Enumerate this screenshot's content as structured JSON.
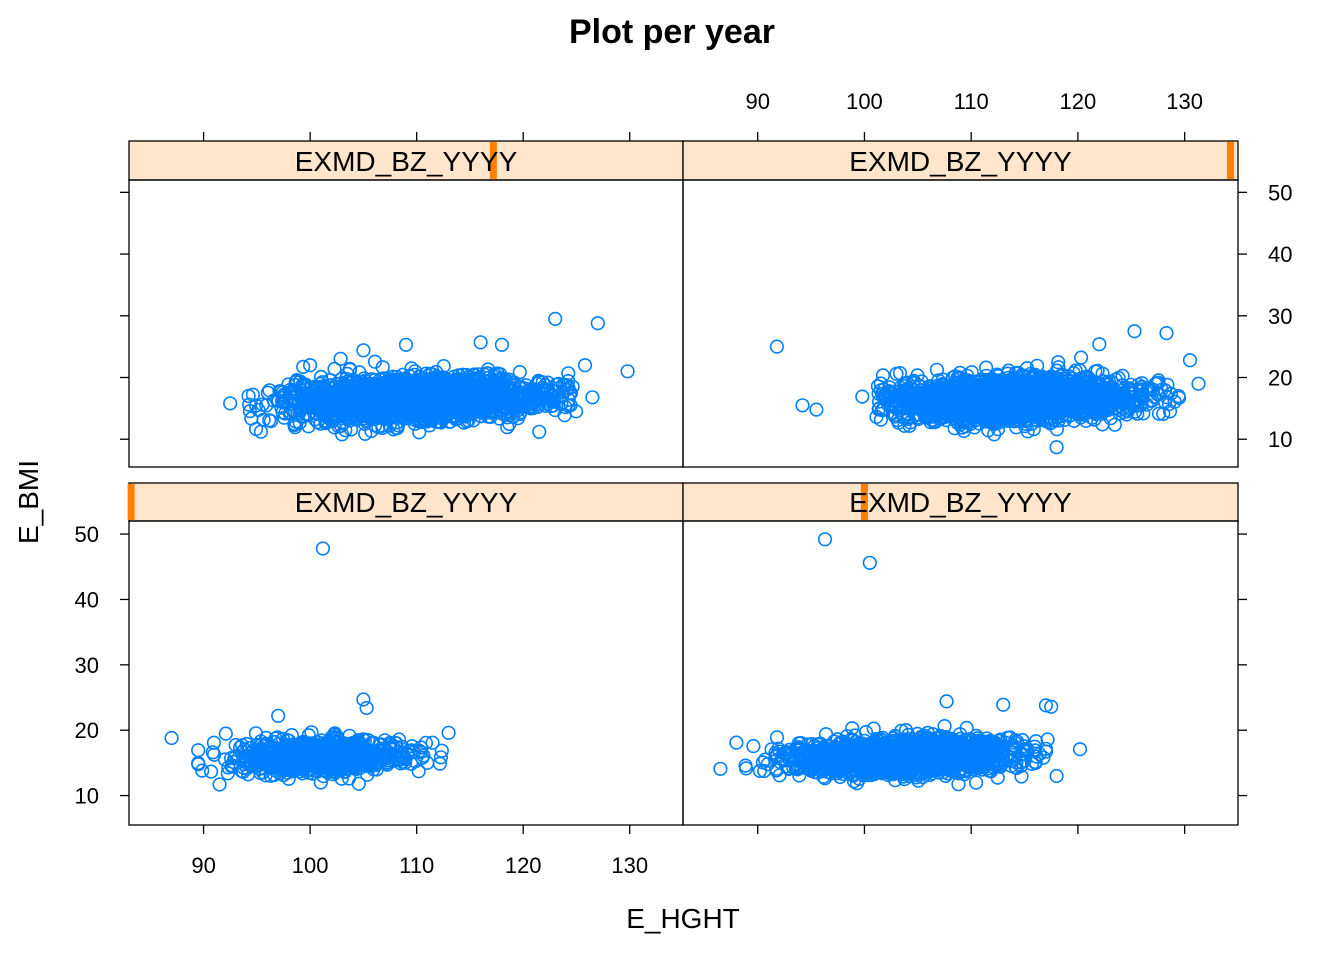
{
  "chart_data": {
    "type": "scatter",
    "layout": "2x2 lattice (trellis) panels",
    "title": "Plot per year",
    "xlabel": "E_HGHT",
    "ylabel": "E_BMI",
    "xlim": [
      83,
      135
    ],
    "ylim": [
      5.5,
      52
    ],
    "x_ticks": [
      90,
      100,
      110,
      120,
      130
    ],
    "y_ticks": [
      10,
      20,
      30,
      40,
      50
    ],
    "point_color": "#0080ff",
    "strip_color": "#ffe5cc",
    "strip_marker_color": "#ff7f00",
    "grid": false,
    "legend": "none",
    "panels": [
      {
        "id": "bottom-left",
        "strip_label": "EXMD_BZ_YYYY",
        "strip_marker_x": 83.2,
        "cluster": {
          "x_range": [
            89,
            115
          ],
          "x_mean": 101,
          "x_sd": 3.8,
          "y_mean": 16,
          "y_sd": 1.2,
          "n": 900
        },
        "outliers": [
          {
            "x": 101.2,
            "y": 47.8
          },
          {
            "x": 87,
            "y": 18.8
          },
          {
            "x": 89.5,
            "y": 14.8
          },
          {
            "x": 113,
            "y": 19.6
          },
          {
            "x": 111,
            "y": 15
          },
          {
            "x": 105,
            "y": 24.7
          },
          {
            "x": 105.3,
            "y": 23.4
          },
          {
            "x": 97,
            "y": 22.2
          },
          {
            "x": 91.5,
            "y": 11.7
          },
          {
            "x": 101,
            "y": 12
          }
        ]
      },
      {
        "id": "bottom-right",
        "strip_label": "EXMD_BZ_YYYY",
        "strip_marker_x": 100,
        "cluster": {
          "x_range": [
            88,
            120
          ],
          "x_mean": 104,
          "x_sd": 5.0,
          "y_mean": 16,
          "y_sd": 1.3,
          "n": 1800
        },
        "outliers": [
          {
            "x": 96.3,
            "y": 49.2
          },
          {
            "x": 100.5,
            "y": 45.6
          },
          {
            "x": 86.5,
            "y": 14.1
          },
          {
            "x": 120.2,
            "y": 17.1
          },
          {
            "x": 118,
            "y": 13
          },
          {
            "x": 117,
            "y": 23.8
          },
          {
            "x": 117.5,
            "y": 23.6
          },
          {
            "x": 107.7,
            "y": 24.4
          },
          {
            "x": 113,
            "y": 23.9
          },
          {
            "x": 88,
            "y": 18.1
          },
          {
            "x": 99.3,
            "y": 11.9
          }
        ]
      },
      {
        "id": "top-left",
        "strip_label": "EXMD_BZ_YYYY",
        "strip_marker_x": 117.2,
        "cluster": {
          "x_range": [
            94,
            125
          ],
          "x_mean": 110,
          "x_sd": 6.0,
          "y_mean": 16.5,
          "y_sd": 1.7,
          "n": 2200
        },
        "outliers": [
          {
            "x": 92.5,
            "y": 15.8
          },
          {
            "x": 123,
            "y": 29.5
          },
          {
            "x": 127,
            "y": 28.8
          },
          {
            "x": 129.8,
            "y": 21
          },
          {
            "x": 126.5,
            "y": 16.8
          },
          {
            "x": 125.8,
            "y": 22
          },
          {
            "x": 121.5,
            "y": 11.2
          },
          {
            "x": 103,
            "y": 10.8
          },
          {
            "x": 100,
            "y": 22
          },
          {
            "x": 109,
            "y": 25.3
          },
          {
            "x": 116,
            "y": 25.7
          },
          {
            "x": 118,
            "y": 25.3
          },
          {
            "x": 105,
            "y": 24.4
          }
        ]
      },
      {
        "id": "top-right",
        "strip_label": "EXMD_BZ_YYYY",
        "strip_marker_x": 134.3,
        "cluster": {
          "x_range": [
            101,
            130
          ],
          "x_mean": 114,
          "x_sd": 5.5,
          "y_mean": 16.5,
          "y_sd": 1.7,
          "n": 2200
        },
        "outliers": [
          {
            "x": 91.8,
            "y": 25
          },
          {
            "x": 94.2,
            "y": 15.5
          },
          {
            "x": 95.5,
            "y": 14.8
          },
          {
            "x": 99.8,
            "y": 16.9
          },
          {
            "x": 118,
            "y": 8.7
          },
          {
            "x": 125.3,
            "y": 27.5
          },
          {
            "x": 128.3,
            "y": 27.2
          },
          {
            "x": 131.3,
            "y": 19
          },
          {
            "x": 130.5,
            "y": 22.8
          },
          {
            "x": 122,
            "y": 25.4
          },
          {
            "x": 128,
            "y": 14.1
          },
          {
            "x": 103,
            "y": 20.6
          },
          {
            "x": 108.5,
            "y": 20.2
          }
        ]
      }
    ]
  }
}
